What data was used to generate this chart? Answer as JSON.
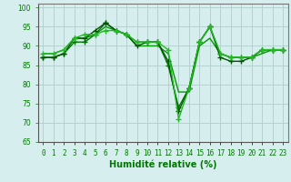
{
  "series": [
    {
      "x": [
        0,
        1,
        2,
        3,
        4,
        5,
        6,
        7,
        8,
        9,
        10,
        11,
        12,
        13,
        14,
        15,
        16,
        17,
        18,
        19,
        20,
        21,
        22,
        23
      ],
      "y": [
        87,
        87,
        88,
        91,
        91,
        93,
        96,
        94,
        93,
        91,
        91,
        91,
        85,
        74,
        79,
        91,
        95,
        88,
        87,
        87,
        87,
        89,
        89,
        89
      ],
      "color": "#007700",
      "linewidth": 1.0,
      "marker": "+"
    },
    {
      "x": [
        0,
        1,
        2,
        3,
        4,
        5,
        6,
        7,
        8,
        9,
        10,
        11,
        12,
        13,
        14,
        15,
        16,
        17,
        18,
        19,
        20,
        21,
        22,
        23
      ],
      "y": [
        88,
        88,
        89,
        92,
        92,
        93,
        95,
        94,
        93,
        90,
        90,
        90,
        88,
        78,
        78,
        90,
        92,
        88,
        87,
        87,
        87,
        88,
        89,
        89
      ],
      "color": "#009900",
      "linewidth": 1.0,
      "marker": null
    },
    {
      "x": [
        0,
        1,
        2,
        3,
        4,
        5,
        6,
        7,
        8,
        9,
        10,
        11,
        12,
        13,
        14,
        15,
        16,
        17,
        18,
        19,
        20,
        21,
        22,
        23
      ],
      "y": [
        87,
        87,
        88,
        92,
        92,
        94,
        96,
        94,
        93,
        90,
        91,
        91,
        86,
        73,
        79,
        91,
        95,
        87,
        86,
        86,
        87,
        89,
        89,
        89
      ],
      "color": "#005500",
      "linewidth": 1.0,
      "marker": "+"
    },
    {
      "x": [
        0,
        1,
        2,
        3,
        4,
        5,
        6,
        7,
        8,
        9,
        10,
        11,
        12,
        13,
        14,
        15,
        16,
        17,
        18,
        19,
        20,
        21,
        22,
        23
      ],
      "y": [
        88,
        88,
        89,
        92,
        93,
        93,
        94,
        94,
        93,
        91,
        91,
        91,
        89,
        71,
        79,
        91,
        95,
        88,
        87,
        87,
        87,
        89,
        89,
        89
      ],
      "color": "#22bb22",
      "linewidth": 1.0,
      "marker": "+"
    }
  ],
  "xlabel": "Humidité relative (%)",
  "xlim": [
    -0.5,
    23.5
  ],
  "ylim": [
    65,
    101
  ],
  "yticks": [
    65,
    70,
    75,
    80,
    85,
    90,
    95,
    100
  ],
  "xticks": [
    0,
    1,
    2,
    3,
    4,
    5,
    6,
    7,
    8,
    9,
    10,
    11,
    12,
    13,
    14,
    15,
    16,
    17,
    18,
    19,
    20,
    21,
    22,
    23
  ],
  "xtick_labels": [
    "0",
    "1",
    "2",
    "3",
    "4",
    "5",
    "6",
    "7",
    "8",
    "9",
    "10",
    "11",
    "12",
    "13",
    "14",
    "15",
    "16",
    "17",
    "18",
    "19",
    "20",
    "21",
    "22",
    "23"
  ],
  "background_color": "#d6eeee",
  "grid_color": "#b0cccc",
  "xlabel_color": "#007700",
  "tick_color": "#007700",
  "markersize": 4,
  "markeredgewidth": 1.0
}
